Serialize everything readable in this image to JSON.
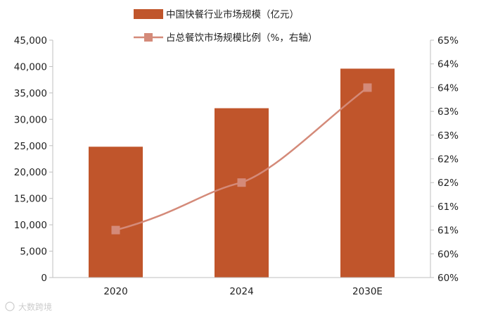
{
  "chart_data": {
    "type": "bar",
    "categories": [
      "2020",
      "2024",
      "2030E"
    ],
    "series": [
      {
        "name": "中国快餐行业市场规模（亿元）",
        "kind": "bar",
        "axis": "left",
        "values": [
          24800,
          32100,
          39600
        ],
        "color": "#c0552b"
      },
      {
        "name": "占总餐饮市场规模比例（%，右轴）",
        "kind": "line",
        "axis": "right",
        "values": [
          61.0,
          62.0,
          64.0
        ],
        "color": "#d48a79"
      }
    ],
    "y_left": {
      "lim": [
        0,
        45000
      ],
      "ticks": [
        0,
        5000,
        10000,
        15000,
        20000,
        25000,
        30000,
        35000,
        40000,
        45000
      ],
      "tick_labels": [
        "0",
        "5,000",
        "10,000",
        "15,000",
        "20,000",
        "25,000",
        "30,000",
        "35,000",
        "40,000",
        "45,000"
      ]
    },
    "y_right": {
      "lim": [
        60,
        65
      ],
      "ticks": [
        60,
        60.5,
        61,
        61.5,
        62,
        62.5,
        63,
        63.5,
        64,
        64.5,
        65
      ],
      "tick_labels": [
        "60%",
        "60%",
        "61%",
        "61%",
        "62%",
        "62%",
        "63%",
        "63%",
        "64%",
        "64%",
        "65%"
      ]
    },
    "legend_position": "top-center",
    "grid": false
  },
  "watermark": {
    "text": "大数跨境"
  }
}
